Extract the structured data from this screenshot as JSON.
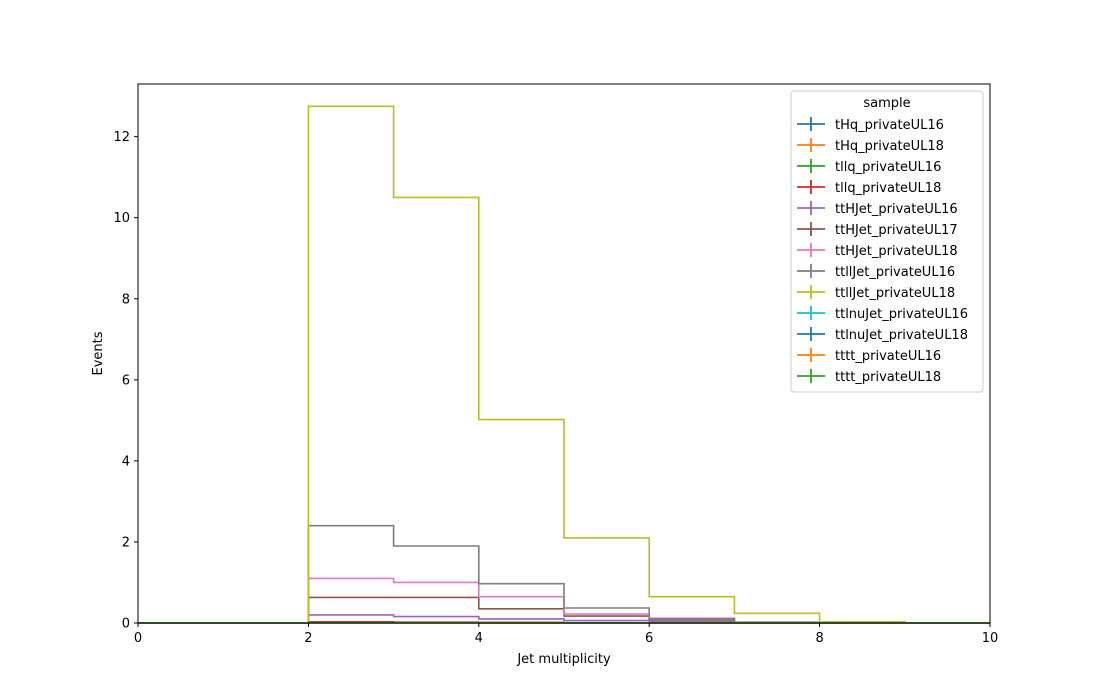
{
  "chart_data": {
    "type": "histogram-step",
    "xlabel": "Jet multiplicity",
    "ylabel": "Events",
    "xlim": [
      0,
      10
    ],
    "ylim": [
      0,
      13.3
    ],
    "x_ticks": [
      0,
      2,
      4,
      6,
      8,
      10
    ],
    "y_ticks": [
      0,
      2,
      4,
      6,
      8,
      10,
      12
    ],
    "bin_edges": [
      0,
      1,
      2,
      3,
      4,
      5,
      6,
      7,
      8,
      9,
      10
    ],
    "grid": false,
    "legend": {
      "title": "sample",
      "position": "top-right"
    },
    "series": [
      {
        "name": "tHq_privateUL16",
        "color": "#1f77b4",
        "values": [
          0,
          0,
          0.01,
          0.01,
          0.005,
          0.003,
          0.002,
          0.001,
          0,
          0
        ]
      },
      {
        "name": "tHq_privateUL18",
        "color": "#ff7f0e",
        "values": [
          0,
          0,
          0.02,
          0.015,
          0.01,
          0.006,
          0.003,
          0.001,
          0,
          0
        ]
      },
      {
        "name": "tllq_privateUL16",
        "color": "#2ca02c",
        "values": [
          0,
          0,
          0.02,
          0.015,
          0.01,
          0.005,
          0.002,
          0.001,
          0,
          0
        ]
      },
      {
        "name": "tllq_privateUL18",
        "color": "#d62728",
        "values": [
          0,
          0,
          0.03,
          0.02,
          0.012,
          0.006,
          0.002,
          0.001,
          0,
          0
        ]
      },
      {
        "name": "ttHJet_privateUL16",
        "color": "#9467bd",
        "values": [
          0,
          0,
          0.2,
          0.16,
          0.1,
          0.06,
          0.04,
          0,
          0,
          0
        ]
      },
      {
        "name": "ttHJet_privateUL17",
        "color": "#8c564b",
        "values": [
          0,
          0,
          0.63,
          0.63,
          0.35,
          0.17,
          0.08,
          0,
          0,
          0
        ]
      },
      {
        "name": "ttHJet_privateUL18",
        "color": "#e377c2",
        "values": [
          0,
          0,
          1.1,
          1.0,
          0.65,
          0.22,
          0.12,
          0,
          0,
          0
        ]
      },
      {
        "name": "ttllJet_privateUL16",
        "color": "#7f7f7f",
        "values": [
          0,
          0,
          2.4,
          1.9,
          0.97,
          0.37,
          0.1,
          0.02,
          0,
          0
        ]
      },
      {
        "name": "ttllJet_privateUL18",
        "color": "#bcbd22",
        "values": [
          0,
          0,
          12.75,
          10.5,
          5.02,
          2.1,
          0.65,
          0.24,
          0.03,
          0
        ]
      },
      {
        "name": "ttlnuJet_privateUL16",
        "color": "#17becf",
        "values": [
          0,
          0,
          0.005,
          0.004,
          0.003,
          0.002,
          0.001,
          0,
          0,
          0
        ]
      },
      {
        "name": "ttlnuJet_privateUL18",
        "color": "#1f77b4",
        "values": [
          0,
          0,
          0.01,
          0.008,
          0.005,
          0.003,
          0.001,
          0,
          0,
          0
        ]
      },
      {
        "name": "tttt_privateUL16",
        "color": "#ff7f0e",
        "values": [
          0,
          0,
          0.001,
          0.001,
          0.001,
          0.001,
          0.001,
          0.001,
          0,
          0
        ]
      },
      {
        "name": "tttt_privateUL18",
        "color": "#2ca02c",
        "values": [
          0,
          0,
          0.002,
          0.002,
          0.002,
          0.002,
          0.002,
          0.001,
          0,
          0
        ]
      }
    ]
  }
}
